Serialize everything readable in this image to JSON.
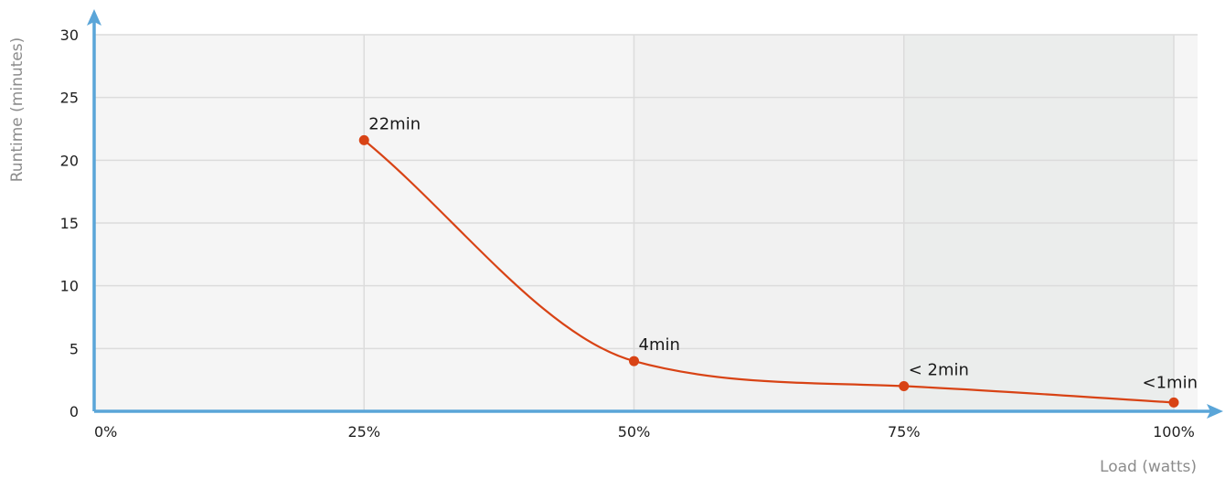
{
  "chart_data": {
    "type": "line",
    "title": "",
    "xlabel": "Load (watts)",
    "ylabel": "Runtime (minutes)",
    "x_ticks": [
      "0%",
      "25%",
      "50%",
      "75%",
      "100%"
    ],
    "y_ticks": [
      "0",
      "5",
      "10",
      "15",
      "20",
      "25",
      "30"
    ],
    "xlim": [
      0,
      100
    ],
    "ylim": [
      0,
      30
    ],
    "grid": true,
    "colors": {
      "line": "#d84315",
      "axis": "#5aa5d8",
      "grid": "#dcdcdc",
      "band_light": "#f5f5f5",
      "band_mid": "#f1f1f1",
      "band_dark": "#ebedec"
    },
    "series": [
      {
        "x": [
          25,
          50,
          75,
          100
        ],
        "y": [
          21.6,
          4.0,
          2.0,
          0.7
        ],
        "labels": [
          "22min",
          "4min",
          "< 2min",
          "<1min"
        ]
      }
    ]
  }
}
